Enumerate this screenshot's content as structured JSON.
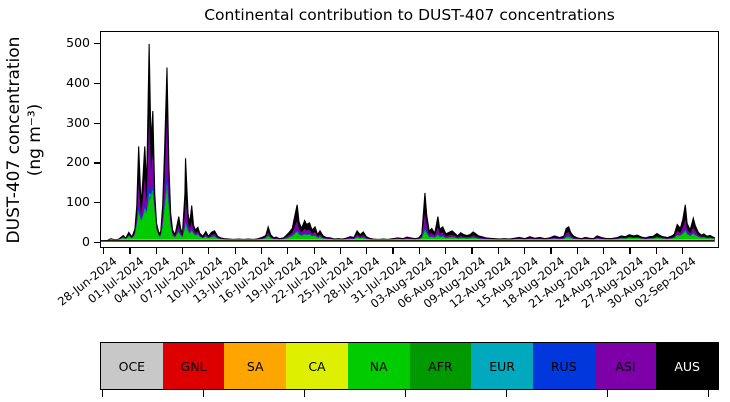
{
  "chart_data": {
    "type": "area",
    "subtype": "stacked-area-timeseries",
    "title": "Continental contribution to DUST-407 concentrations",
    "ylabel_line1": "DUST-407 concentration",
    "ylabel_line2": "(ng m⁻³)",
    "xlabel": "",
    "y_ticks": [
      0,
      100,
      200,
      300,
      400,
      500
    ],
    "ylim": [
      0,
      520
    ],
    "grid": false,
    "x_tick_labels": [
      "28-Jun-2024",
      "01-Jul-2024",
      "04-Jul-2024",
      "07-Jul-2024",
      "10-Jul-2024",
      "13-Jul-2024",
      "16-Jul-2024",
      "19-Jul-2024",
      "22-Jul-2024",
      "25-Jul-2024",
      "28-Jul-2024",
      "31-Jul-2024",
      "03-Aug-2024",
      "06-Aug-2024",
      "09-Aug-2024",
      "12-Aug-2024",
      "15-Aug-2024",
      "18-Aug-2024",
      "21-Aug-2024",
      "24-Aug-2024",
      "27-Aug-2024",
      "30-Aug-2024",
      "02-Sep-2024"
    ],
    "legend": [
      {
        "label": "OCE",
        "color": "#c8c8c8",
        "text_color": "#000000"
      },
      {
        "label": "GNL",
        "color": "#dd0000",
        "text_color": "#000000"
      },
      {
        "label": "SA",
        "color": "#ffa500",
        "text_color": "#000000"
      },
      {
        "label": "CA",
        "color": "#dfef00",
        "text_color": "#000000"
      },
      {
        "label": "NA",
        "color": "#00cc00",
        "text_color": "#000000"
      },
      {
        "label": "AFR",
        "color": "#009900",
        "text_color": "#000000"
      },
      {
        "label": "EUR",
        "color": "#00a9bd",
        "text_color": "#000000"
      },
      {
        "label": "RUS",
        "color": "#0038dd",
        "text_color": "#000000"
      },
      {
        "label": "ASI",
        "color": "#7d00a8",
        "text_color": "#000000"
      },
      {
        "label": "AUS",
        "color": "#000000",
        "text_color": "#ffffff"
      }
    ],
    "legend_axis": {
      "tick_count": 7
    },
    "samples_note": "columns: x_frac (fraction of time axis 28-Jun to 04-Sep-2024), total ng/m3 (top of AUS/black), cumulative-through-ASI (purple top), cumulative-through-NA (green top); estimated from pixels",
    "derived_bands": {
      "rus_gap_frac": 0.22,
      "eur_gap_frac": 0.1,
      "afr_gap_frac": 0.05,
      "ca_cap": 4,
      "oce_cap": 1.5
    },
    "samples": [
      [
        0.0,
        0,
        0,
        0
      ],
      [
        0.01,
        1,
        1,
        1
      ],
      [
        0.016,
        6,
        5,
        4
      ],
      [
        0.023,
        3,
        2.5,
        2
      ],
      [
        0.029,
        5,
        4,
        3
      ],
      [
        0.036,
        14,
        11,
        8
      ],
      [
        0.04,
        7,
        6,
        5
      ],
      [
        0.045,
        22,
        16,
        12
      ],
      [
        0.05,
        10,
        8,
        7
      ],
      [
        0.055,
        30,
        22,
        15
      ],
      [
        0.058,
        90,
        60,
        40
      ],
      [
        0.061,
        240,
        150,
        70
      ],
      [
        0.065,
        90,
        65,
        50
      ],
      [
        0.068,
        160,
        110,
        60
      ],
      [
        0.071,
        240,
        160,
        75
      ],
      [
        0.074,
        140,
        100,
        70
      ],
      [
        0.078,
        500,
        320,
        100
      ],
      [
        0.081,
        250,
        180,
        110
      ],
      [
        0.084,
        330,
        220,
        120
      ],
      [
        0.087,
        120,
        90,
        70
      ],
      [
        0.09,
        45,
        35,
        28
      ],
      [
        0.094,
        18,
        14,
        11
      ],
      [
        0.097,
        25,
        18,
        12
      ],
      [
        0.1,
        90,
        65,
        35
      ],
      [
        0.103,
        230,
        160,
        80
      ],
      [
        0.107,
        440,
        320,
        130
      ],
      [
        0.11,
        190,
        140,
        80
      ],
      [
        0.113,
        70,
        50,
        35
      ],
      [
        0.116,
        28,
        20,
        14
      ],
      [
        0.12,
        16,
        12,
        9
      ],
      [
        0.123,
        38,
        26,
        16
      ],
      [
        0.126,
        62,
        40,
        22
      ],
      [
        0.129,
        32,
        22,
        14
      ],
      [
        0.132,
        18,
        13,
        9
      ],
      [
        0.136,
        120,
        70,
        30
      ],
      [
        0.137,
        210,
        110,
        40
      ],
      [
        0.141,
        70,
        45,
        25
      ],
      [
        0.144,
        45,
        30,
        18
      ],
      [
        0.147,
        90,
        50,
        25
      ],
      [
        0.15,
        40,
        28,
        18
      ],
      [
        0.153,
        28,
        20,
        14
      ],
      [
        0.157,
        35,
        24,
        16
      ],
      [
        0.16,
        20,
        15,
        11
      ],
      [
        0.165,
        12,
        9,
        7
      ],
      [
        0.17,
        24,
        17,
        11
      ],
      [
        0.174,
        12,
        9,
        7
      ],
      [
        0.179,
        22,
        15,
        10
      ],
      [
        0.184,
        26,
        18,
        11
      ],
      [
        0.189,
        12,
        9,
        6
      ],
      [
        0.194,
        8,
        6,
        5
      ],
      [
        0.2,
        6,
        5,
        4
      ],
      [
        0.207,
        5,
        4,
        3.5
      ],
      [
        0.215,
        4,
        3.5,
        3
      ],
      [
        0.223,
        5,
        4,
        3.5
      ],
      [
        0.231,
        4,
        3.5,
        3
      ],
      [
        0.239,
        5,
        4,
        3.5
      ],
      [
        0.247,
        4,
        3.5,
        3
      ],
      [
        0.255,
        6,
        5,
        4
      ],
      [
        0.262,
        10,
        7,
        5
      ],
      [
        0.267,
        14,
        10,
        7
      ],
      [
        0.271,
        36,
        22,
        12
      ],
      [
        0.275,
        16,
        11,
        7
      ],
      [
        0.28,
        8,
        6,
        5
      ],
      [
        0.284,
        10,
        7,
        5
      ],
      [
        0.289,
        6,
        5,
        4
      ],
      [
        0.296,
        8,
        6,
        5
      ],
      [
        0.3,
        14,
        10,
        6
      ],
      [
        0.305,
        22,
        15,
        9
      ],
      [
        0.31,
        32,
        21,
        12
      ],
      [
        0.313,
        55,
        33,
        16
      ],
      [
        0.318,
        92,
        52,
        22
      ],
      [
        0.321,
        48,
        30,
        16
      ],
      [
        0.325,
        32,
        22,
        13
      ],
      [
        0.33,
        52,
        32,
        16
      ],
      [
        0.333,
        42,
        27,
        15
      ],
      [
        0.338,
        46,
        29,
        16
      ],
      [
        0.342,
        28,
        19,
        12
      ],
      [
        0.347,
        36,
        23,
        13
      ],
      [
        0.351,
        16,
        12,
        8
      ],
      [
        0.355,
        26,
        17,
        10
      ],
      [
        0.36,
        13,
        9,
        6
      ],
      [
        0.365,
        9,
        7,
        5
      ],
      [
        0.372,
        8,
        6,
        5
      ],
      [
        0.378,
        5,
        4,
        3.5
      ],
      [
        0.384,
        6,
        5,
        4
      ],
      [
        0.391,
        5,
        4,
        3.5
      ],
      [
        0.397,
        7,
        5.5,
        4
      ],
      [
        0.404,
        11,
        8,
        5
      ],
      [
        0.41,
        9,
        7,
        5
      ],
      [
        0.415,
        26,
        17,
        9
      ],
      [
        0.42,
        16,
        11,
        7
      ],
      [
        0.425,
        23,
        15,
        8
      ],
      [
        0.43,
        11,
        8,
        5
      ],
      [
        0.435,
        7,
        5.5,
        4
      ],
      [
        0.441,
        5,
        4,
        3.5
      ],
      [
        0.449,
        4,
        3.5,
        3
      ],
      [
        0.457,
        5,
        4,
        3.5
      ],
      [
        0.465,
        4,
        3.5,
        3
      ],
      [
        0.473,
        6,
        5,
        4
      ],
      [
        0.481,
        8,
        6,
        4.5
      ],
      [
        0.49,
        6,
        5,
        4
      ],
      [
        0.496,
        10,
        7,
        5
      ],
      [
        0.502,
        8,
        6,
        4.5
      ],
      [
        0.509,
        6,
        5,
        4
      ],
      [
        0.515,
        8,
        6,
        4.5
      ],
      [
        0.52,
        18,
        12,
        7
      ],
      [
        0.525,
        122,
        70,
        25
      ],
      [
        0.528,
        65,
        40,
        18
      ],
      [
        0.532,
        25,
        16,
        9
      ],
      [
        0.536,
        32,
        20,
        10
      ],
      [
        0.541,
        20,
        14,
        8
      ],
      [
        0.546,
        62,
        36,
        14
      ],
      [
        0.549,
        30,
        19,
        10
      ],
      [
        0.554,
        36,
        22,
        11
      ],
      [
        0.559,
        18,
        12,
        7
      ],
      [
        0.564,
        22,
        14,
        8
      ],
      [
        0.569,
        26,
        16,
        9
      ],
      [
        0.574,
        19,
        13,
        8
      ],
      [
        0.578,
        13,
        9,
        6
      ],
      [
        0.583,
        21,
        13,
        7
      ],
      [
        0.588,
        16,
        11,
        7
      ],
      [
        0.593,
        14,
        10,
        6
      ],
      [
        0.598,
        16,
        11,
        7
      ],
      [
        0.603,
        23,
        14,
        8
      ],
      [
        0.607,
        19,
        12,
        7
      ],
      [
        0.612,
        13,
        9,
        6
      ],
      [
        0.617,
        11,
        8,
        5
      ],
      [
        0.624,
        8,
        6,
        4.5
      ],
      [
        0.63,
        7,
        5.5,
        4
      ],
      [
        0.638,
        6,
        5,
        4
      ],
      [
        0.646,
        5,
        4,
        3.5
      ],
      [
        0.654,
        6,
        5,
        4
      ],
      [
        0.662,
        5,
        4,
        3.5
      ],
      [
        0.67,
        7,
        5.5,
        4
      ],
      [
        0.678,
        9,
        6.5,
        4.5
      ],
      [
        0.687,
        6,
        5,
        4
      ],
      [
        0.695,
        11,
        7,
        5
      ],
      [
        0.703,
        7,
        5.5,
        4
      ],
      [
        0.711,
        9,
        6.5,
        4.5
      ],
      [
        0.719,
        6,
        5,
        4
      ],
      [
        0.727,
        8,
        6,
        4.5
      ],
      [
        0.735,
        13,
        9,
        5.5
      ],
      [
        0.743,
        9,
        6.5,
        4.5
      ],
      [
        0.75,
        12,
        8,
        5
      ],
      [
        0.754,
        32,
        20,
        9
      ],
      [
        0.758,
        36,
        23,
        10
      ],
      [
        0.761,
        22,
        14,
        8
      ],
      [
        0.766,
        12,
        8,
        5
      ],
      [
        0.772,
        8,
        6,
        4.5
      ],
      [
        0.779,
        6,
        5,
        4
      ],
      [
        0.785,
        9,
        6.5,
        4.5
      ],
      [
        0.792,
        7,
        5.5,
        4
      ],
      [
        0.798,
        6,
        5,
        4
      ],
      [
        0.804,
        13,
        9,
        5.5
      ],
      [
        0.811,
        9,
        6.5,
        4.5
      ],
      [
        0.817,
        7,
        5.5,
        4
      ],
      [
        0.824,
        6,
        5,
        4
      ],
      [
        0.83,
        7,
        5.5,
        4
      ],
      [
        0.837,
        9,
        6.5,
        5
      ],
      [
        0.843,
        13,
        9,
        6.5
      ],
      [
        0.85,
        11,
        8,
        6
      ],
      [
        0.856,
        16,
        11,
        8
      ],
      [
        0.863,
        13,
        9,
        7
      ],
      [
        0.869,
        15,
        10,
        7.5
      ],
      [
        0.876,
        10,
        7.5,
        6
      ],
      [
        0.882,
        8,
        6,
        5
      ],
      [
        0.889,
        11,
        7.5,
        5.5
      ],
      [
        0.895,
        12,
        8,
        6
      ],
      [
        0.901,
        19,
        12,
        8
      ],
      [
        0.906,
        14,
        9.5,
        7
      ],
      [
        0.911,
        11,
        8,
        6
      ],
      [
        0.918,
        9,
        6.5,
        5
      ],
      [
        0.924,
        12,
        8,
        6
      ],
      [
        0.929,
        17,
        11,
        7.5
      ],
      [
        0.934,
        42,
        26,
        14
      ],
      [
        0.939,
        32,
        21,
        13
      ],
      [
        0.943,
        55,
        34,
        18
      ],
      [
        0.947,
        92,
        55,
        24
      ],
      [
        0.95,
        45,
        30,
        17
      ],
      [
        0.955,
        28,
        19,
        12
      ],
      [
        0.96,
        58,
        35,
        18
      ],
      [
        0.963,
        40,
        26,
        14
      ],
      [
        0.968,
        22,
        15,
        10
      ],
      [
        0.973,
        15,
        11,
        8
      ],
      [
        0.977,
        18,
        12,
        8.5
      ],
      [
        0.982,
        12,
        9,
        6.5
      ],
      [
        0.987,
        14,
        10,
        7
      ],
      [
        0.992,
        10,
        8,
        6
      ],
      [
        0.994,
        9,
        7,
        5.5
      ]
    ]
  }
}
